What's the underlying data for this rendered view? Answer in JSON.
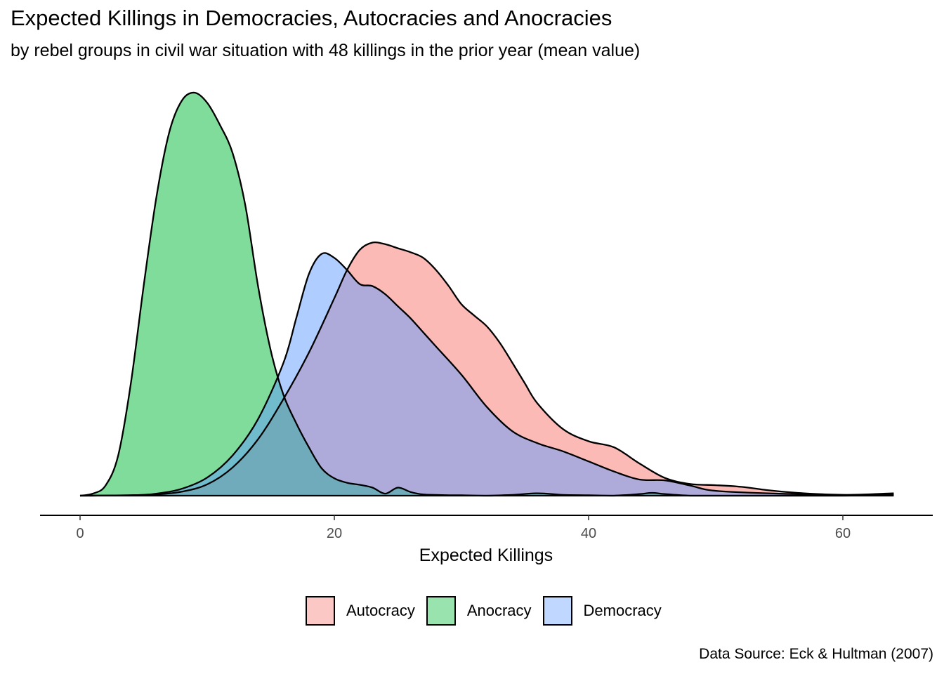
{
  "header": {
    "title": "Expected Killings in Democracies, Autocracies and Anocracies",
    "subtitle": "by rebel groups in civil war situation with 48 killings in the prior year (mean value)"
  },
  "caption": "Data Source: Eck & Hultman (2007)",
  "chart_data": {
    "type": "area",
    "subtype": "overlapping density",
    "title": "Expected Killings in Democracies, Autocracies and Anocracies",
    "subtitle": "by rebel groups in civil war situation with 48 killings in the prior year (mean value)",
    "xlabel": "Expected Killings",
    "ylabel": "",
    "xlim": [
      -3.1,
      67
    ],
    "ylim": [
      0,
      1.0
    ],
    "x_ticks": [
      0,
      20,
      40,
      60
    ],
    "x_tick_labels": [
      "0",
      "20",
      "40",
      "60"
    ],
    "y_axis_visible": false,
    "grid": false,
    "legend_position": "bottom",
    "fill_opacity": 0.5,
    "series": [
      {
        "name": "Autocracy",
        "color": "#F8766D",
        "x": [
          0,
          4,
          6,
          8,
          10,
          12,
          14,
          16,
          18,
          20,
          21,
          22,
          23,
          24,
          25,
          26,
          27,
          28,
          29,
          30,
          31,
          32,
          33,
          34,
          35,
          36,
          38,
          40,
          42,
          44,
          46,
          48,
          50,
          52,
          54,
          56,
          58,
          60,
          62,
          64
        ],
        "y": [
          0,
          0.001,
          0.003,
          0.01,
          0.028,
          0.07,
          0.14,
          0.24,
          0.355,
          0.49,
          0.56,
          0.61,
          0.628,
          0.624,
          0.614,
          0.604,
          0.59,
          0.56,
          0.52,
          0.475,
          0.447,
          0.42,
          0.38,
          0.33,
          0.278,
          0.228,
          0.165,
          0.135,
          0.12,
          0.08,
          0.044,
          0.029,
          0.026,
          0.022,
          0.014,
          0.008,
          0.004,
          0.002,
          0.001,
          0.004
        ]
      },
      {
        "name": "Anocracy",
        "color": "#00BA38",
        "x": [
          0,
          1,
          2,
          3,
          4,
          5,
          6,
          7,
          8,
          9,
          10,
          11,
          12,
          13,
          14,
          15,
          16,
          17,
          18,
          19,
          20,
          21,
          22,
          23,
          24,
          25,
          26,
          27,
          28,
          29,
          30,
          32,
          34,
          36,
          38,
          40,
          42,
          44,
          45,
          46,
          48,
          50,
          55,
          60,
          64
        ],
        "y": [
          0,
          0.005,
          0.025,
          0.1,
          0.28,
          0.52,
          0.74,
          0.9,
          0.98,
          1.0,
          0.975,
          0.92,
          0.85,
          0.72,
          0.52,
          0.36,
          0.25,
          0.18,
          0.12,
          0.068,
          0.043,
          0.032,
          0.027,
          0.02,
          0.005,
          0.02,
          0.009,
          0.003,
          0.002,
          0.001,
          0.001,
          0.0,
          0.002,
          0.006,
          0.002,
          0.001,
          0.0,
          0.004,
          0.007,
          0.004,
          0.0,
          0.0,
          0.0,
          0.0,
          0.003
        ]
      },
      {
        "name": "Democracy",
        "color": "#619CFF",
        "x": [
          0,
          4,
          6,
          8,
          10,
          12,
          14,
          16,
          17,
          18,
          19,
          20,
          21,
          22,
          23,
          24,
          25,
          26,
          27,
          28,
          30,
          32,
          34,
          36,
          38,
          40,
          42,
          44,
          46,
          48,
          50,
          55,
          60,
          64
        ],
        "y": [
          0,
          0.001,
          0.005,
          0.017,
          0.045,
          0.1,
          0.19,
          0.33,
          0.44,
          0.55,
          0.6,
          0.59,
          0.56,
          0.525,
          0.52,
          0.5,
          0.47,
          0.44,
          0.405,
          0.37,
          0.3,
          0.22,
          0.16,
          0.13,
          0.11,
          0.085,
          0.06,
          0.04,
          0.038,
          0.025,
          0.012,
          0.005,
          0.002,
          0.006
        ]
      }
    ]
  }
}
